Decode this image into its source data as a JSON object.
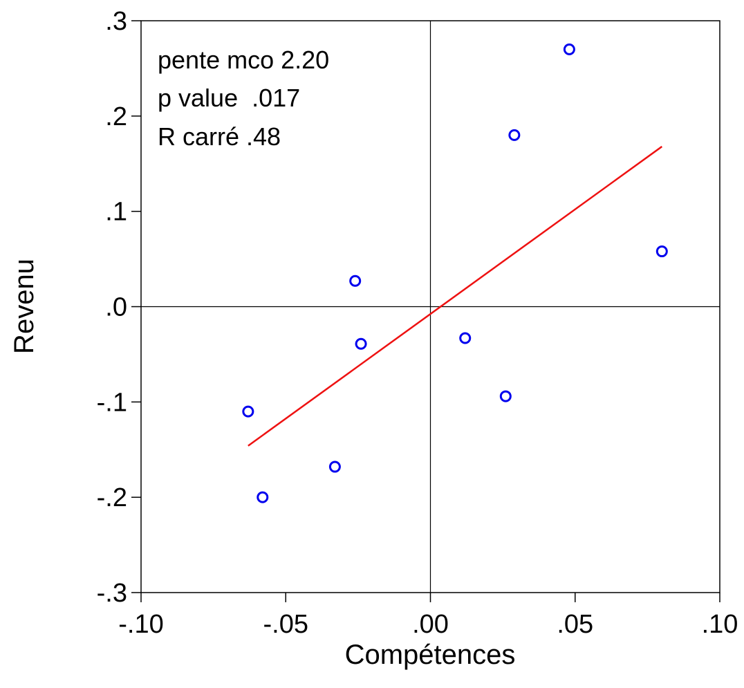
{
  "chart_data": {
    "type": "scatter",
    "xlabel": "Compétences",
    "ylabel": "Revenu",
    "xlim": [
      -0.1,
      0.1
    ],
    "ylim": [
      -0.3,
      0.3
    ],
    "x_ticks": [
      -0.1,
      -0.05,
      0.0,
      0.05,
      0.1
    ],
    "x_tick_labels": [
      "-.10",
      "-.05",
      ".00",
      ".05",
      ".10"
    ],
    "y_ticks": [
      0.3,
      0.2,
      0.1,
      0.0,
      -0.1,
      -0.2,
      -0.3
    ],
    "y_tick_labels": [
      ".3",
      ".2",
      ".1",
      ".0",
      "-.1",
      "-.2",
      "-.3"
    ],
    "reference_lines": {
      "x": 0.0,
      "y": 0.0
    },
    "annotations": [
      "pente mco 2.20",
      "p value  .017",
      "R carré .48"
    ],
    "series": [
      {
        "kind": "points",
        "marker": "open-circle",
        "color": "#0000ee",
        "points": [
          {
            "x": -0.063,
            "y": -0.11
          },
          {
            "x": -0.058,
            "y": -0.2
          },
          {
            "x": -0.033,
            "y": -0.168
          },
          {
            "x": -0.026,
            "y": 0.027
          },
          {
            "x": -0.024,
            "y": -0.039
          },
          {
            "x": 0.012,
            "y": -0.033
          },
          {
            "x": 0.026,
            "y": -0.094
          },
          {
            "x": 0.029,
            "y": 0.18
          },
          {
            "x": 0.048,
            "y": 0.27
          },
          {
            "x": 0.08,
            "y": 0.058
          }
        ]
      },
      {
        "kind": "fit-line",
        "color": "#ee1111",
        "points": [
          {
            "x": -0.063,
            "y": -0.146
          },
          {
            "x": 0.08,
            "y": 0.168
          }
        ]
      }
    ]
  }
}
